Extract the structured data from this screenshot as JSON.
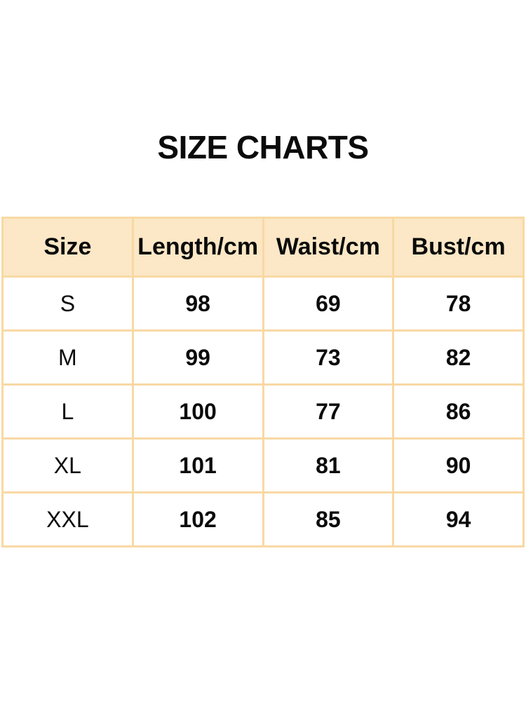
{
  "page": {
    "background": "#ffffff"
  },
  "colors": {
    "header_fill": "#fce7c6",
    "border": "#f8d9a4",
    "text": "#0b0b0b"
  },
  "chart_data": {
    "type": "table",
    "title": "SIZE CHARTS",
    "columns": [
      "Size",
      "Length/cm",
      "Waist/cm",
      "Bust/cm"
    ],
    "rows": [
      [
        "S",
        "98",
        "69",
        "78"
      ],
      [
        "M",
        "99",
        "73",
        "82"
      ],
      [
        "L",
        "100",
        "77",
        "86"
      ],
      [
        "XL",
        "101",
        "81",
        "90"
      ],
      [
        "XXL",
        "102",
        "85",
        "94"
      ]
    ]
  }
}
